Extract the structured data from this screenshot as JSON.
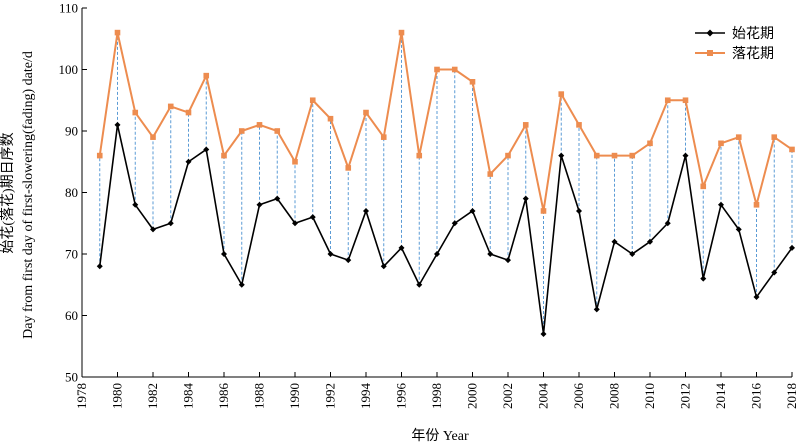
{
  "chart_data": {
    "type": "line",
    "xlabel": "年份 Year",
    "ylabel_cn": "始花(落花)期日序数",
    "ylabel_en": "Day from first day of first-slowering(fading) date/d",
    "xlim": [
      1978,
      2018
    ],
    "ylim": [
      50,
      110
    ],
    "x_ticks": [
      1978,
      1980,
      1982,
      1984,
      1986,
      1988,
      1990,
      1992,
      1994,
      1996,
      1998,
      2000,
      2002,
      2004,
      2006,
      2008,
      2010,
      2012,
      2014,
      2016,
      2018
    ],
    "y_ticks": [
      50,
      60,
      70,
      80,
      90,
      100,
      110
    ],
    "grid": false,
    "legend_position": "top-right",
    "connector_color": "#5b9bd5",
    "x": [
      1979,
      1980,
      1981,
      1982,
      1983,
      1984,
      1985,
      1986,
      1987,
      1988,
      1989,
      1990,
      1991,
      1992,
      1993,
      1994,
      1995,
      1996,
      1997,
      1998,
      1999,
      2000,
      2001,
      2002,
      2003,
      2004,
      2005,
      2006,
      2007,
      2008,
      2009,
      2010,
      2011,
      2012,
      2013,
      2014,
      2015,
      2016,
      2017,
      2018
    ],
    "series": [
      {
        "name": "始花期",
        "color": "#000000",
        "marker": "diamond",
        "values": [
          68,
          91,
          78,
          74,
          75,
          85,
          87,
          70,
          65,
          78,
          79,
          75,
          76,
          70,
          69,
          77,
          68,
          71,
          65,
          70,
          75,
          77,
          70,
          69,
          79,
          57,
          86,
          77,
          61,
          72,
          70,
          72,
          75,
          86,
          66,
          78,
          74,
          63,
          67,
          71
        ]
      },
      {
        "name": "落花期",
        "color": "#ed8c4f",
        "marker": "square",
        "values": [
          86,
          106,
          93,
          89,
          94,
          93,
          99,
          86,
          90,
          91,
          90,
          85,
          95,
          92,
          84,
          93,
          89,
          106,
          86,
          100,
          100,
          98,
          83,
          86,
          91,
          77,
          96,
          91,
          86,
          86,
          86,
          88,
          95,
          95,
          81,
          88,
          89,
          78,
          89,
          87
        ]
      }
    ]
  }
}
